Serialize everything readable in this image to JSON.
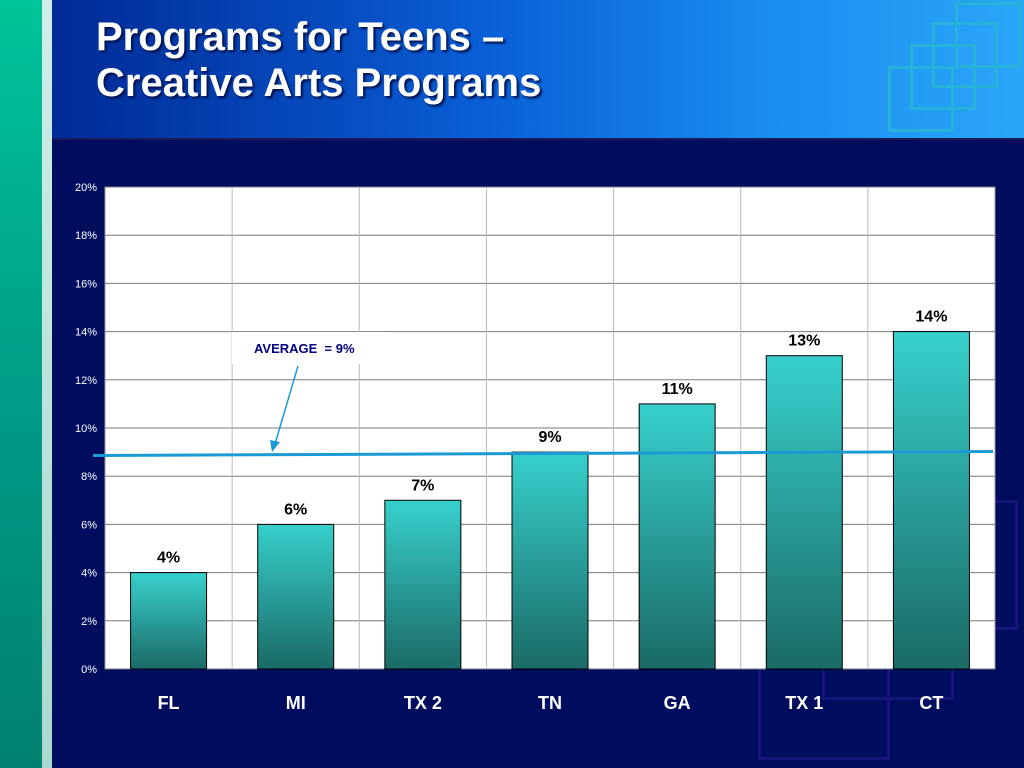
{
  "slide": {
    "title": "Programs for Teens –\nCreative Arts Programs",
    "colors": {
      "background": "#000d5e",
      "bar_top": "#37d0cc",
      "bar_bottom": "#1b6a66",
      "average_line": "#1b9ad6",
      "plot_bg": "#ffffff"
    }
  },
  "chart_data": {
    "type": "bar",
    "categories": [
      "FL",
      "MI",
      "TX 2",
      "TN",
      "GA",
      "TX 1",
      "CT"
    ],
    "values": [
      4,
      6,
      7,
      9,
      11,
      13,
      14
    ],
    "data_labels": [
      "4%",
      "6%",
      "7%",
      "9%",
      "11%",
      "13%",
      "14%"
    ],
    "ylim": [
      0,
      20
    ],
    "yticks": [
      0,
      2,
      4,
      6,
      8,
      10,
      12,
      14,
      16,
      18,
      20
    ],
    "ytick_labels": [
      "0%",
      "2%",
      "4%",
      "6%",
      "8%",
      "10%",
      "12%",
      "14%",
      "16%",
      "18%",
      "20%"
    ],
    "grid": true,
    "reference_line": {
      "value": 8.9,
      "label": "AVERAGE  = 9%"
    }
  }
}
